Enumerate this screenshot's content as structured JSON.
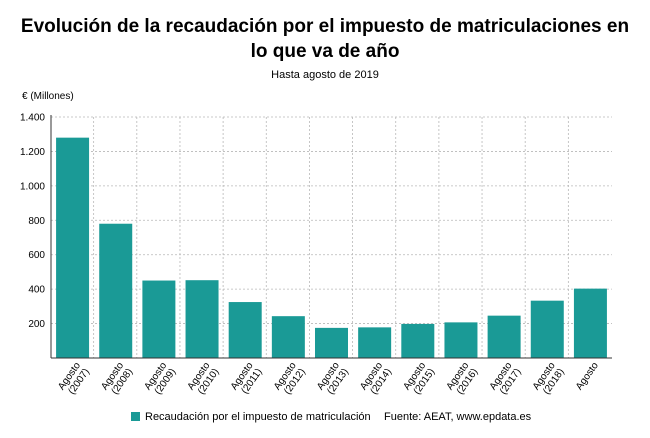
{
  "chart_data": {
    "type": "bar",
    "title_lines": [
      "Evolución de la recaudación por el impuesto de matriculaciones en",
      "lo que va de año"
    ],
    "subtitle": "Hasta agosto de 2019",
    "ylabel": "€ (Millones)",
    "ylim": [
      0,
      1400
    ],
    "yticks": [
      200,
      400,
      600,
      800,
      1000,
      1200,
      1400
    ],
    "ytick_labels": [
      "200",
      "400",
      "600",
      "800",
      "1.000",
      "1.200",
      "1.400"
    ],
    "grid": true,
    "categories": [
      [
        "Agosto",
        "(2007)"
      ],
      [
        "Agosto",
        "(2008)"
      ],
      [
        "Agosto",
        "(2009)"
      ],
      [
        "Agosto",
        "(2010)"
      ],
      [
        "Agosto",
        "(2011)"
      ],
      [
        "Agosto",
        "(2012)"
      ],
      [
        "Agosto",
        "(2013)"
      ],
      [
        "Agosto",
        "(2014)"
      ],
      [
        "Agosto",
        "(2015)"
      ],
      [
        "Agosto",
        "(2016)"
      ],
      [
        "Agosto",
        "(2017)"
      ],
      [
        "Agosto",
        "(2018)"
      ],
      [
        "Agosto"
      ]
    ],
    "series": [
      {
        "name": "Recaudación por el impuesto de matriculación",
        "color": "#1a9a96",
        "values": [
          1280,
          780,
          450,
          452,
          325,
          243,
          175,
          178,
          198,
          207,
          246,
          333,
          403
        ]
      }
    ],
    "source": "Fuente: AEAT, www.epdata.es",
    "legend_position": "bottom"
  }
}
